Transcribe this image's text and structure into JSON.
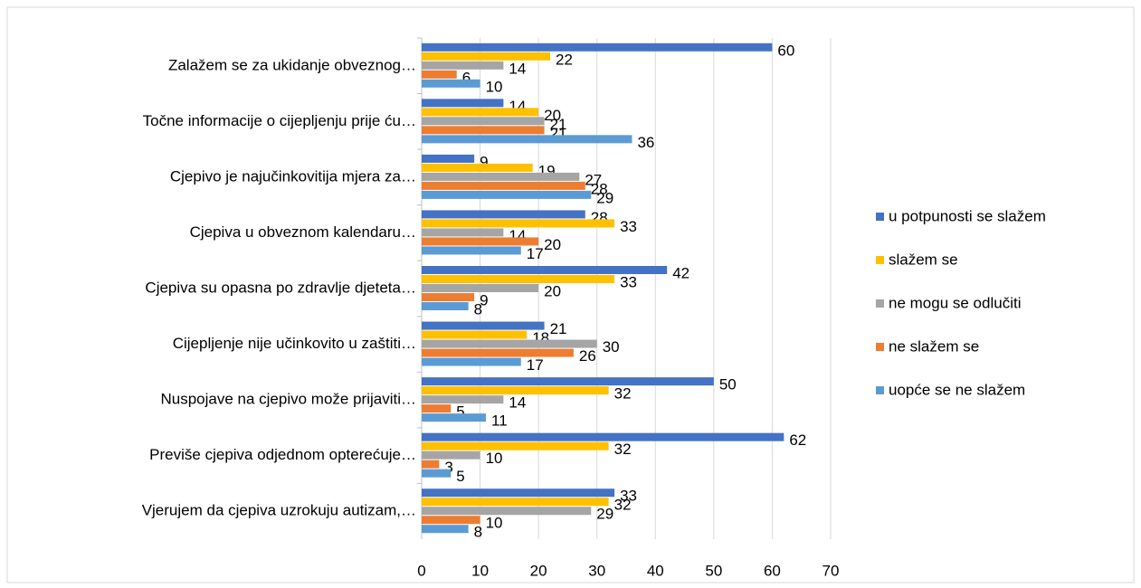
{
  "chart_data": {
    "type": "bar",
    "orientation": "horizontal",
    "categories": [
      "Zalažem se za ukidanje obveznog…",
      "Točne informacije o cijepljenju prije ću…",
      "Cjepivo je najučinkovitija mjera za…",
      "Cjepiva u obveznom kalendaru…",
      "Cjepiva su opasna po zdravlje djeteta…",
      "Cijepljenje nije učinkovito u zaštiti…",
      "Nuspojave na cjepivo može prijaviti…",
      "Previše cjepiva odjednom opterećuje…",
      "Vjerujem da cjepiva uzrokuju autizam,…"
    ],
    "series": [
      {
        "name": "u potpunosti se slažem",
        "color": "#4472c4",
        "values": [
          60,
          14,
          9,
          28,
          42,
          21,
          50,
          62,
          33
        ]
      },
      {
        "name": "slažem se",
        "color": "#ffc000",
        "values": [
          22,
          20,
          19,
          33,
          33,
          18,
          32,
          32,
          32
        ]
      },
      {
        "name": "ne mogu se odlučiti",
        "color": "#a5a5a5",
        "values": [
          14,
          21,
          27,
          14,
          20,
          30,
          14,
          10,
          29
        ]
      },
      {
        "name": "ne slažem se",
        "color": "#ed7d31",
        "values": [
          6,
          21,
          28,
          20,
          9,
          26,
          5,
          3,
          10
        ]
      },
      {
        "name": "uopće se ne slažem",
        "color": "#5b9bd5",
        "values": [
          10,
          36,
          29,
          17,
          8,
          17,
          11,
          5,
          8
        ]
      }
    ],
    "xlim": [
      0,
      70
    ],
    "xticks": [
      0,
      10,
      20,
      30,
      40,
      50,
      60,
      70
    ],
    "grid": true,
    "legend": "right"
  }
}
